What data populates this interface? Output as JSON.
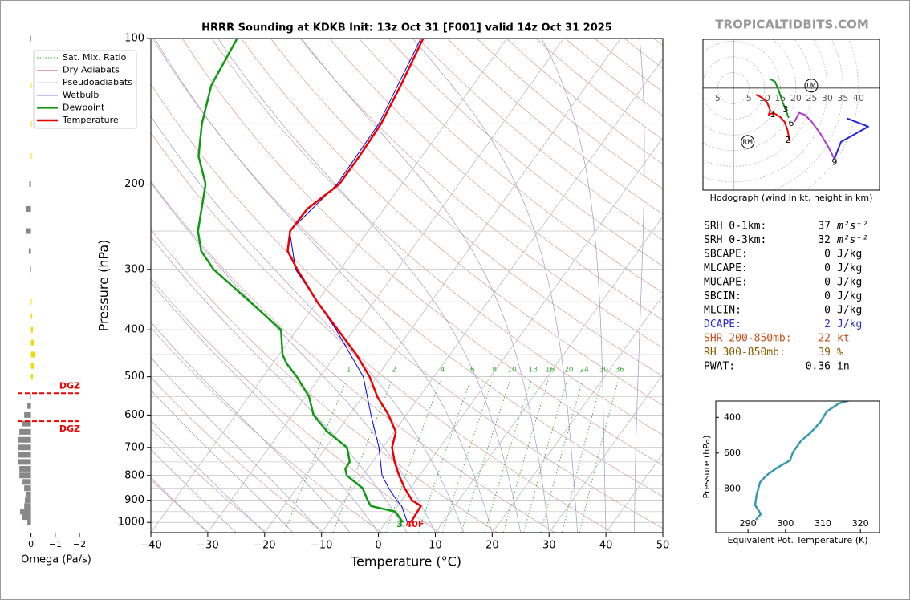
{
  "chart_data": {
    "type": "skewt",
    "title": "HRRR Sounding at KDKB Init: 13z Oct 31 [F001] valid 14z Oct 31 2025",
    "brand": "TROPICALTIDBITS.COM",
    "xlabel": "Temperature (°C)",
    "ylabel": "Pressure (hPa)",
    "xlim": [
      -40,
      50
    ],
    "ylim": [
      1050,
      100
    ],
    "log_y": true,
    "grid": true,
    "xticks": [
      {
        "value": -40,
        "label": "−40"
      },
      {
        "value": -30,
        "label": "−30"
      },
      {
        "value": -20,
        "label": "−20"
      },
      {
        "value": -10,
        "label": "−10"
      },
      0,
      10,
      20,
      30,
      40,
      50
    ],
    "yticks": [
      100,
      200,
      300,
      400,
      500,
      600,
      700,
      800,
      900,
      1000
    ],
    "yminor": [
      150,
      250,
      350,
      450,
      550,
      650,
      750,
      850,
      950
    ],
    "background_lines": [
      {
        "name": "Sat. Mix. Ratio",
        "color": "#33aa33",
        "dash": "dotted"
      },
      {
        "name": "Dry Adiabats",
        "color": "#d99a9a",
        "dash": "solid"
      },
      {
        "name": "Pseudoadiabats",
        "color": "#9a9ad0",
        "dash": "solid"
      }
    ],
    "mixing_ratio_labels": [
      1,
      2,
      4,
      6,
      8,
      10,
      13,
      16,
      20,
      24,
      30,
      36
    ],
    "series": [
      {
        "name": "Wetbulb",
        "color": "#0000ee",
        "width": 1,
        "pressure": [
          1000,
          925,
          900,
          850,
          800,
          700,
          600,
          500,
          400,
          300,
          250,
          200,
          150,
          100
        ],
        "values": [
          3.8,
          0.7,
          -0.9,
          -3.8,
          -6.6,
          -10.7,
          -16.2,
          -22.4,
          -33.1,
          -47.9,
          -53.8,
          -51.4,
          -51.7,
          -55.1
        ]
      },
      {
        "name": "Dewpoint",
        "color": "#119911",
        "width": 2.5,
        "pressure": [
          1000,
          975,
          950,
          925,
          900,
          850,
          800,
          775,
          750,
          700,
          650,
          600,
          550,
          500,
          470,
          450,
          400,
          350,
          300,
          275,
          250,
          200,
          175,
          150,
          125,
          100
        ],
        "values": [
          3.0,
          1.7,
          0.3,
          -4.7,
          -6.0,
          -8.4,
          -12.8,
          -13.9,
          -14.0,
          -16.3,
          -21.7,
          -26.3,
          -29.4,
          -34.1,
          -37.5,
          -39.4,
          -42.8,
          -51.8,
          -62.3,
          -66.8,
          -69.9,
          -74.5,
          -79.3,
          -82.8,
          -86.0,
          -87.4
        ]
      },
      {
        "name": "Temperature",
        "color": "#ee0000",
        "width": 2.5,
        "pressure": [
          1000,
          925,
          900,
          850,
          800,
          750,
          700,
          650,
          600,
          550,
          500,
          450,
          400,
          350,
          300,
          275,
          250,
          225,
          200,
          175,
          150,
          125,
          100
        ],
        "values": [
          4.4,
          4.1,
          1.8,
          -1.0,
          -3.6,
          -6.1,
          -8.4,
          -9.7,
          -13.1,
          -17.4,
          -21.3,
          -26.4,
          -32.8,
          -40.0,
          -47.6,
          -51.6,
          -53.7,
          -53.5,
          -51.0,
          -51.0,
          -51.3,
          -52.7,
          -54.7
        ]
      }
    ],
    "surface_labels": {
      "dewpoint": "3",
      "temperature": "40F"
    },
    "dgz": {
      "label": "DGZ",
      "top": 541,
      "bottom": 618,
      "color": "#ee0000"
    },
    "omega": {
      "xlabel": "Omega (Pa/s)",
      "xlim": [
        0.55,
        -2
      ],
      "xticks": [
        0,
        {
          "value": -1,
          "label": "−1"
        },
        {
          "value": -2,
          "label": "−2"
        }
      ],
      "positive_color": "#888888",
      "negative_color": "#f5d800",
      "pressure": [
        1000,
        975,
        950,
        925,
        900,
        875,
        850,
        825,
        800,
        775,
        750,
        725,
        700,
        675,
        650,
        625,
        600,
        575,
        550,
        500,
        475,
        450,
        425,
        400,
        375,
        350,
        300,
        275,
        250,
        225,
        200,
        175,
        150,
        125,
        100
      ],
      "values": [
        0.15,
        0.35,
        0.45,
        0.28,
        0.25,
        0.22,
        0.28,
        0.35,
        0.48,
        0.48,
        0.52,
        0.52,
        0.52,
        0.52,
        0.48,
        0.35,
        0.28,
        0.15,
        0.05,
        -0.08,
        -0.11,
        -0.15,
        -0.11,
        -0.08,
        -0.05,
        -0.03,
        0.05,
        0.09,
        0.19,
        0.19,
        0.07,
        -0.03,
        -0.03,
        -0.03,
        0.02
      ]
    },
    "hodograph": {
      "caption": "Hodograph (wind in kt, height in km)",
      "ulim": [
        -9.7,
        46.7
      ],
      "vlim": [
        -32.6,
        15.6
      ],
      "ring_ticks": [
        5,
        10,
        15,
        20,
        25,
        30,
        35,
        40
      ],
      "segments": [
        {
          "color": "#119911",
          "u": [
            11.8,
            13.3,
            14.4,
            15.6,
            16.7,
            17.7
          ],
          "v": [
            2.8,
            2.1,
            -0.5,
            -4.1,
            -6.9,
            -9.5
          ]
        },
        {
          "color": "#ee0000",
          "u": [
            7.2,
            9.2,
            10.8,
            11.8,
            11.3,
            12.8,
            14.9,
            16.4,
            17.4,
            17.9
          ],
          "v": [
            -2.1,
            -3.1,
            -4.6,
            -7.2,
            -8.5,
            -7.9,
            -9.2,
            -10.8,
            -13.6,
            -16.9
          ]
        },
        {
          "color": "#b03cc8",
          "u": [
            19.5,
            21.0,
            22.8,
            25.1,
            27.7,
            30.3,
            32.3
          ],
          "v": [
            -10.8,
            -7.9,
            -8.5,
            -10.8,
            -14.4,
            -18.7,
            -22.6
          ]
        },
        {
          "color": "#2222ee",
          "u": [
            32.3,
            34.4,
            43.1,
            36.4
          ],
          "v": [
            -22.6,
            -17.2,
            -12.3,
            -9.7
          ]
        }
      ],
      "height_labels": [
        {
          "text": "1",
          "u": 12.6,
          "v": -8.5
        },
        {
          "text": "2",
          "u": 17.4,
          "v": -16.7
        },
        {
          "text": "3",
          "u": 16.7,
          "v": -6.9
        },
        {
          "text": "6",
          "u": 18.5,
          "v": -11.3
        },
        {
          "text": "9",
          "u": 32.3,
          "v": -23.8
        }
      ],
      "markers": [
        {
          "text": "RM",
          "u": 4.6,
          "v": -17.2
        },
        {
          "text": "LM",
          "u": 24.9,
          "v": 0.8
        }
      ]
    },
    "stats": [
      {
        "label": "SRH 0-1km:",
        "value": 37,
        "unit": "m²s⁻²",
        "color": "#000000"
      },
      {
        "label": "SRH 0-3km:",
        "value": 32,
        "unit": "m²s⁻²",
        "color": "#000000"
      },
      {
        "label": "SBCAPE:",
        "value": 0,
        "unit": "J/kg",
        "color": "#000000"
      },
      {
        "label": "MLCAPE:",
        "value": 0,
        "unit": "J/kg",
        "color": "#000000"
      },
      {
        "label": "MUCAPE:",
        "value": 0,
        "unit": "J/kg",
        "color": "#000000"
      },
      {
        "label": "SBCIN:",
        "value": 0,
        "unit": "J/kg",
        "color": "#000000"
      },
      {
        "label": "MLCIN:",
        "value": 0,
        "unit": "J/kg",
        "color": "#000000"
      },
      {
        "label": "DCAPE:",
        "value": 2,
        "unit": "J/kg",
        "color": "#2a2ad0"
      },
      {
        "label": "SHR 200-850mb:",
        "value": 22,
        "unit": "kt",
        "color": "#c8501e"
      },
      {
        "label": "RH 300-850mb:",
        "value": 39,
        "unit": "%",
        "color": "#8b5a00"
      },
      {
        "label": "PWAT:",
        "value": 0.36,
        "unit": "in",
        "color": "#000000"
      }
    ],
    "theta_e": {
      "xlabel": "Equivalent Pot. Temperature (K)",
      "ylabel": "Pressure (hPa)",
      "color": "#3a9ab0",
      "xlim": [
        281.4,
        325.1
      ],
      "ylim": [
        1045,
        309
      ],
      "xticks": [
        290,
        300,
        310,
        320
      ],
      "yticks": [
        400,
        600,
        800
      ],
      "pressure": [
        973,
        941,
        891,
        832,
        764,
        723,
        682,
        641,
        595,
        532,
        486,
        427,
        368,
        323,
        300
      ],
      "values": [
        292.1,
        293.4,
        291.9,
        292.3,
        293.2,
        295.0,
        297.8,
        301.2,
        302.0,
        304.1,
        306.7,
        309.3,
        311.0,
        314.2,
        317.9
      ]
    }
  }
}
